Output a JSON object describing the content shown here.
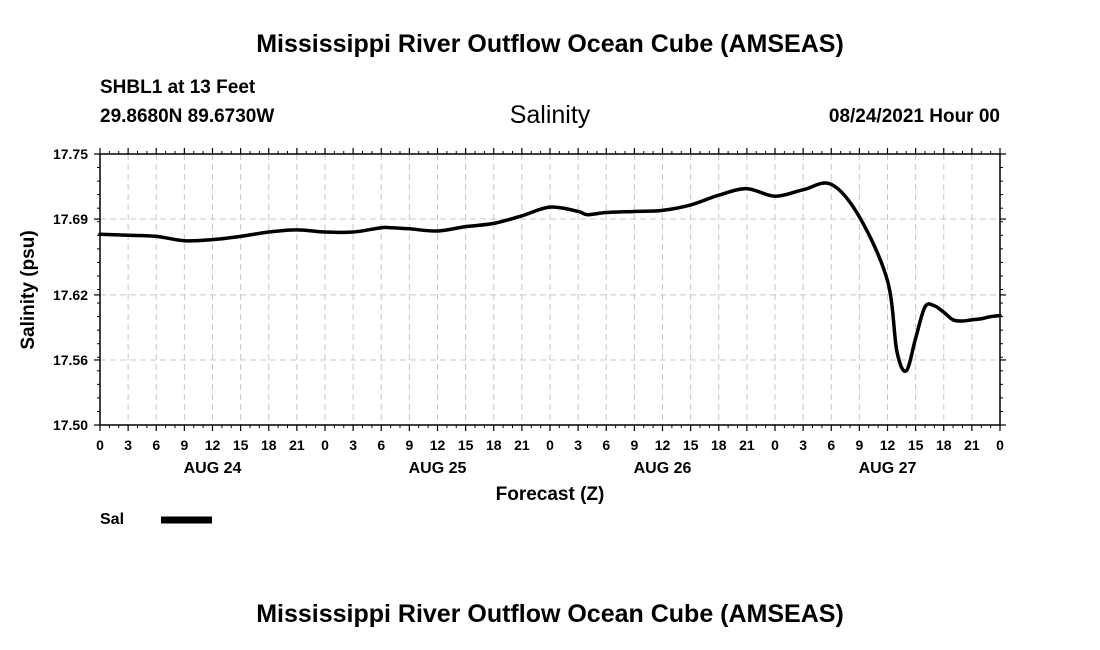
{
  "header": {
    "title": "Mississippi River Outflow Ocean Cube (AMSEAS)",
    "station": "SHBL1 at 13 Feet",
    "coords": "29.8680N  89.6730W",
    "variable": "Salinity",
    "forecast_date": "08/24/2021 Hour 00"
  },
  "footer": {
    "title": "Mississippi River Outflow Ocean Cube (AMSEAS)"
  },
  "chart_data": {
    "type": "line",
    "title": "Salinity",
    "xlabel": "Forecast (Z)",
    "ylabel": "Salinity (psu)",
    "ylim": [
      17.5,
      17.75
    ],
    "yticks": [
      "17.75",
      "17.69",
      "17.62",
      "17.56",
      "17.50"
    ],
    "ytick_values": [
      17.75,
      17.69,
      17.62,
      17.56,
      17.5
    ],
    "xlim": [
      0,
      96
    ],
    "xticks": [
      "0",
      "3",
      "6",
      "9",
      "12",
      "15",
      "18",
      "21",
      "0",
      "3",
      "6",
      "9",
      "12",
      "15",
      "18",
      "21",
      "0",
      "3",
      "6",
      "9",
      "12",
      "15",
      "18",
      "21",
      "0",
      "3",
      "6",
      "9",
      "12",
      "15",
      "18",
      "21",
      "0"
    ],
    "day_labels": [
      {
        "label": "AUG 24",
        "hour": 12
      },
      {
        "label": "AUG 25",
        "hour": 36
      },
      {
        "label": "AUG 26",
        "hour": 60
      },
      {
        "label": "AUG 27",
        "hour": 84
      }
    ],
    "grid": true,
    "legend": "bottom-left",
    "series": [
      {
        "name": "Sal",
        "color": "#000000",
        "x": [
          0,
          3,
          6,
          9,
          12,
          15,
          18,
          21,
          24,
          27,
          30,
          31,
          33,
          36,
          39,
          42,
          45,
          48,
          51,
          52,
          54,
          57,
          60,
          63,
          66,
          69,
          72,
          75,
          78,
          81,
          84,
          85,
          86,
          87,
          88,
          89,
          90,
          91,
          92,
          93,
          94,
          95,
          96
        ],
        "y": [
          17.676,
          17.675,
          17.674,
          17.67,
          17.671,
          17.674,
          17.678,
          17.68,
          17.678,
          17.678,
          17.682,
          17.682,
          17.681,
          17.679,
          17.683,
          17.686,
          17.693,
          17.701,
          17.697,
          17.694,
          17.696,
          17.697,
          17.698,
          17.703,
          17.712,
          17.718,
          17.711,
          17.717,
          17.722,
          17.692,
          17.633,
          17.568,
          17.55,
          17.58,
          17.609,
          17.61,
          17.604,
          17.597,
          17.596,
          17.597,
          17.598,
          17.6,
          17.601
        ]
      }
    ]
  }
}
